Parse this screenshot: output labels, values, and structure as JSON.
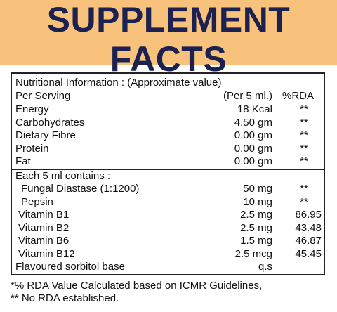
{
  "header": {
    "title": "SUPPLEMENT FACTS"
  },
  "table": {
    "heading": "Nutritional Information : (Approximate value)",
    "columns": [
      "Per Serving",
      "(Per 5 ml.)",
      "%RDA"
    ],
    "rows": [
      [
        "Energy",
        "18 Kcal",
        "**"
      ],
      [
        "Carbohydrates",
        "4.50 gm",
        "**"
      ],
      [
        "Dietary Fibre",
        "0.00 gm",
        "**"
      ],
      [
        "Protein",
        "0.00 gm",
        "**"
      ],
      [
        "Fat",
        "0.00 gm",
        "**"
      ]
    ],
    "section2_heading": "Each  5  ml contains :",
    "section2_rows": [
      [
        "Fungal Diastase (1:1200)",
        "50 mg",
        "**"
      ],
      [
        "Pepsin",
        "10 mg",
        "**"
      ],
      [
        "Vitamin B1",
        "2.5 mg",
        "86.95"
      ],
      [
        "Vitamin B2",
        "2.5 mg",
        "43.48"
      ],
      [
        "Vitamin B6",
        "1.5 mg",
        "46.87"
      ],
      [
        "Vitamin B12",
        "2.5 mcg",
        "45.45"
      ],
      [
        "Flavoured sorbitol base",
        "q.s",
        null
      ]
    ]
  },
  "footer": [
    "*% RDA Value Calculated based on ICMR Guidelines,",
    "** No RDA established."
  ]
}
